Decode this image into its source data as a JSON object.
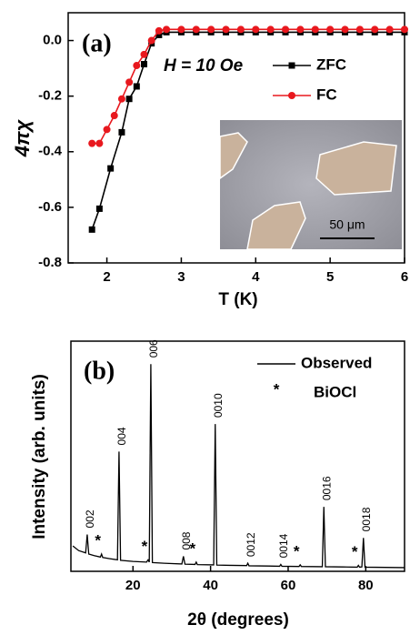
{
  "chart_data": [
    {
      "type": "line",
      "panel_label": "(a)",
      "x_label": "T (K)",
      "y_label": "4πχ",
      "annotation": "H = 10 Oe",
      "xlim": [
        1.48,
        6
      ],
      "ylim": [
        -0.8,
        0.1
      ],
      "xticks": [
        2,
        3,
        4,
        5,
        6
      ],
      "yticks": [
        {
          "value": 0,
          "label": "0.0"
        },
        -0.2,
        -0.4,
        -0.6,
        -0.8
      ],
      "inset_scale_label": "50 μm",
      "series": [
        {
          "name": "ZFC",
          "color": "#000000",
          "marker": "square",
          "x": [
            1.8,
            1.9,
            2.05,
            2.2,
            2.3,
            2.4,
            2.5,
            2.6,
            2.7,
            2.8,
            3.0,
            3.2,
            3.4,
            3.6,
            3.8,
            4.0,
            4.2,
            4.4,
            4.6,
            4.8,
            5.0,
            5.2,
            5.4,
            5.6,
            5.8,
            6.0
          ],
          "values": [
            -0.68,
            -0.605,
            -0.46,
            -0.33,
            -0.21,
            -0.165,
            -0.085,
            -0.01,
            0.02,
            0.03,
            0.03,
            0.03,
            0.03,
            0.03,
            0.03,
            0.03,
            0.03,
            0.03,
            0.03,
            0.03,
            0.03,
            0.03,
            0.03,
            0.03,
            0.03,
            0.03
          ]
        },
        {
          "name": "FC",
          "color": "#e8181e",
          "marker": "circle",
          "x": [
            1.8,
            1.9,
            2.0,
            2.1,
            2.2,
            2.3,
            2.4,
            2.5,
            2.6,
            2.7,
            2.8,
            3.0,
            3.2,
            3.4,
            3.6,
            3.8,
            4.0,
            4.2,
            4.4,
            4.6,
            4.8,
            5.0,
            5.2,
            5.4,
            5.6,
            5.8,
            6.0
          ],
          "values": [
            -0.37,
            -0.37,
            -0.32,
            -0.27,
            -0.21,
            -0.15,
            -0.09,
            -0.05,
            0.0,
            0.035,
            0.04,
            0.04,
            0.04,
            0.04,
            0.04,
            0.04,
            0.04,
            0.04,
            0.04,
            0.04,
            0.04,
            0.04,
            0.04,
            0.04,
            0.04,
            0.04,
            0.04
          ]
        }
      ]
    },
    {
      "type": "line",
      "panel_label": "(b)",
      "x_label": "2θ (degrees)",
      "y_label": "Intensity (arb. units)",
      "xlim": [
        4,
        90
      ],
      "ylim": [
        0,
        100
      ],
      "xticks": [
        20,
        40,
        60,
        80
      ],
      "series": [
        {
          "name": "Observed",
          "color": "#000000",
          "marker": null,
          "x": [
            4.5,
            6,
            7.8,
            8.2,
            8.6,
            10,
            11.6,
            11.9,
            12.2,
            14,
            16,
            16.4,
            16.8,
            20,
            23.5,
            23.9,
            24.2,
            24.6,
            25,
            28,
            32.6,
            33,
            33.4,
            36,
            36.3,
            36.6,
            40.8,
            41.2,
            41.6,
            45,
            49.3,
            49.6,
            49.9,
            55,
            57.8,
            58.1,
            58.4,
            62.8,
            63.1,
            63.4,
            68.8,
            69.2,
            69.6,
            74,
            77.8,
            78.1,
            78.4,
            79.0,
            79.4,
            79.8,
            85,
            90
          ],
          "values": [
            11,
            9,
            8,
            16,
            7.5,
            6.8,
            6.2,
            7.5,
            6,
            5.5,
            5,
            52,
            4.8,
            4.3,
            4,
            5,
            4,
            90,
            3.8,
            3.5,
            3.2,
            6.5,
            3.1,
            3,
            4,
            2.9,
            2.8,
            64,
            2.7,
            2.6,
            2.5,
            3.5,
            2.4,
            2.3,
            2.2,
            3,
            2.2,
            2.1,
            2.8,
            2.1,
            2,
            28,
            2,
            1.9,
            1.8,
            2.6,
            1.8,
            1.9,
            14.5,
            1.8,
            1.7,
            1.6
          ]
        }
      ],
      "impurity_symbol": "*",
      "impurity_name": "BiOCl",
      "impurity_peaks": [
        {
          "x": 11.9,
          "value": 7.5
        },
        {
          "x": 23.9,
          "value": 5
        },
        {
          "x": 36.3,
          "value": 4
        },
        {
          "x": 63.1,
          "value": 2.8
        },
        {
          "x": 78.1,
          "value": 2.6
        }
      ],
      "peaks": [
        {
          "label": "002",
          "x": 8.2,
          "value": 16
        },
        {
          "label": "004",
          "x": 16.4,
          "value": 52
        },
        {
          "label": "006",
          "x": 24.6,
          "value": 90
        },
        {
          "label": "008",
          "x": 33,
          "value": 6.5
        },
        {
          "label": "0010",
          "x": 41.2,
          "value": 64
        },
        {
          "label": "0012",
          "x": 49.6,
          "value": 3.5
        },
        {
          "label": "0014",
          "x": 58.1,
          "value": 3
        },
        {
          "label": "0016",
          "x": 69.2,
          "value": 28
        },
        {
          "label": "0018",
          "x": 79.4,
          "value": 14.5
        }
      ]
    }
  ]
}
